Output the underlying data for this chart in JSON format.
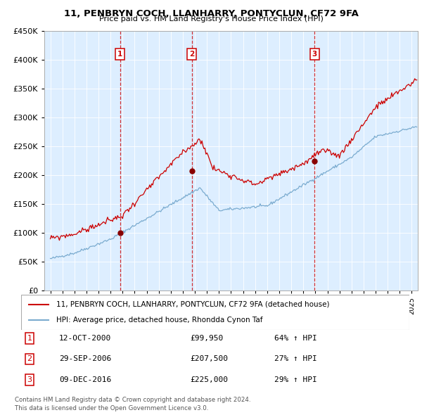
{
  "title": "11, PENBRYN COCH, LLANHARRY, PONTYCLUN, CF72 9FA",
  "subtitle": "Price paid vs. HM Land Registry's House Price Index (HPI)",
  "legend_line1": "11, PENBRYN COCH, LLANHARRY, PONTYCLUN, CF72 9FA (detached house)",
  "legend_line2": "HPI: Average price, detached house, Rhondda Cynon Taf",
  "footer1": "Contains HM Land Registry data © Crown copyright and database right 2024.",
  "footer2": "This data is licensed under the Open Government Licence v3.0.",
  "sale_labels": [
    {
      "num": "1",
      "date": "12-OCT-2000",
      "price": "£99,950",
      "pct": "64% ↑ HPI"
    },
    {
      "num": "2",
      "date": "29-SEP-2006",
      "price": "£207,500",
      "pct": "27% ↑ HPI"
    },
    {
      "num": "3",
      "date": "09-DEC-2016",
      "price": "£225,000",
      "pct": "29% ↑ HPI"
    }
  ],
  "sale_years": [
    2000.79,
    2006.75,
    2016.94
  ],
  "sale_prices": [
    99950,
    207500,
    225000
  ],
  "red_color": "#cc0000",
  "blue_color": "#7aabcf",
  "chart_bg": "#ddeeff",
  "ylim": [
    0,
    450000
  ],
  "xlim": [
    1994.5,
    2025.5
  ]
}
